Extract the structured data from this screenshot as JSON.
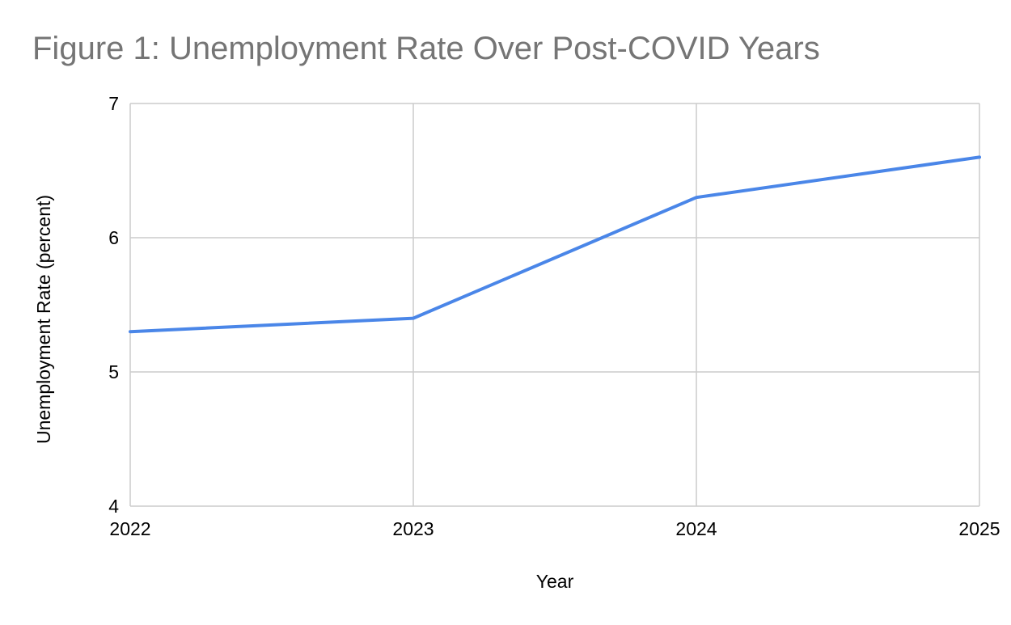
{
  "chart_data": {
    "type": "line",
    "title": "Figure 1: Unemployment Rate Over Post-COVID Years",
    "xlabel": "Year",
    "ylabel": "Unemployment Rate (percent)",
    "x": [
      "2022",
      "2023",
      "2024",
      "2025"
    ],
    "series": [
      {
        "values": [
          5.3,
          5.4,
          6.3,
          6.6
        ],
        "color": "#4a86e8"
      }
    ],
    "ylim": [
      4,
      7
    ],
    "yticks": [
      4,
      5,
      6,
      7
    ],
    "grid": true,
    "legend": "none"
  },
  "colors": {
    "title": "#757575",
    "grid": "#cccccc",
    "line": "#4a86e8"
  }
}
